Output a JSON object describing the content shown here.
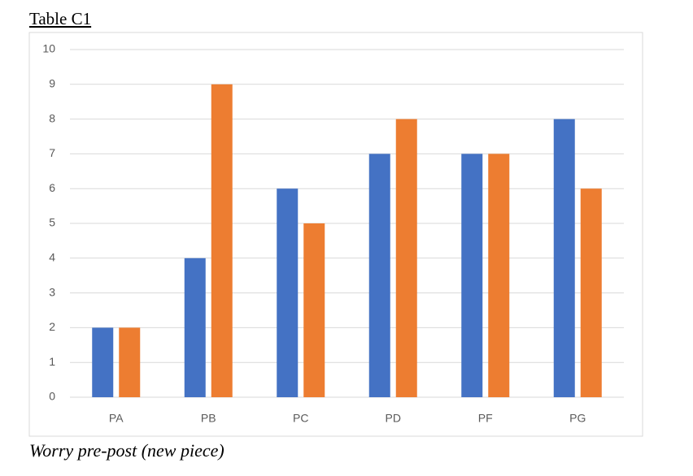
{
  "chart_data": {
    "type": "bar",
    "title": "Table C1",
    "caption": "Worry pre-post (new piece)",
    "categories": [
      "PA",
      "PB",
      "PC",
      "PD",
      "PF",
      "PG"
    ],
    "series": [
      {
        "color": "#4472c4",
        "values": [
          2,
          4,
          6,
          7,
          7,
          8
        ]
      },
      {
        "color": "#ed7d31",
        "values": [
          2,
          9,
          5,
          8,
          7,
          6
        ]
      }
    ],
    "ylim": [
      0,
      10
    ],
    "yticks": [
      0,
      1,
      2,
      3,
      4,
      5,
      6,
      7,
      8,
      9,
      10
    ],
    "grid": true
  }
}
